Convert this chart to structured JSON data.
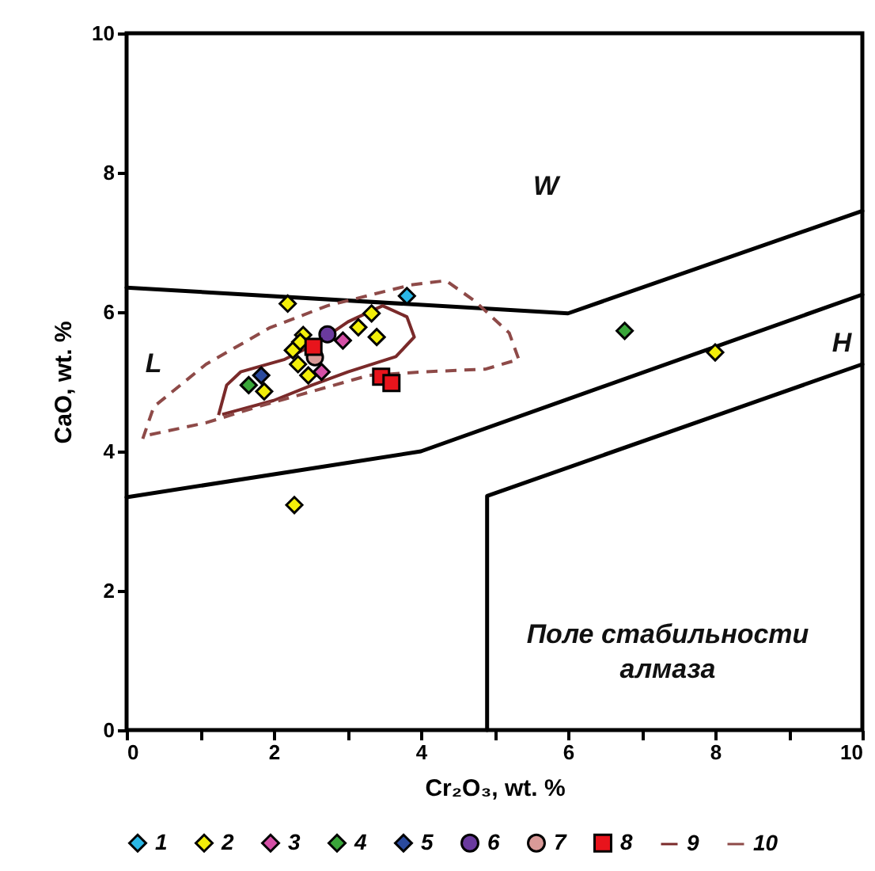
{
  "chart_data": {
    "type": "scatter",
    "xlabel": "Cr₂O₃, wt. %",
    "ylabel": "CaO, wt. %",
    "xlim": [
      0,
      10
    ],
    "ylim": [
      0,
      10
    ],
    "xticks": [
      0,
      {
        "value": 1,
        "label": null
      },
      2,
      {
        "value": 3,
        "label": null
      },
      4,
      {
        "value": 5,
        "label": null
      },
      6,
      {
        "value": 7,
        "label": null
      },
      8,
      {
        "value": 9,
        "label": null
      },
      10
    ],
    "yticks": [
      0,
      2,
      4,
      6,
      8,
      10
    ],
    "grid": false,
    "legend": "bottom",
    "annotations": [
      "W",
      "L",
      "H",
      "Поле стабильности\nалмаза"
    ],
    "series": [
      {
        "type": "line",
        "color": "#000000",
        "line_style": "solid",
        "x": [
          0,
          6,
          10
        ],
        "values": [
          6.35,
          5.98,
          7.45
        ]
      },
      {
        "type": "line",
        "color": "#000000",
        "line_style": "solid",
        "x": [
          0,
          4,
          10
        ],
        "values": [
          3.34,
          4.0,
          6.25
        ]
      },
      {
        "type": "line",
        "color": "#000000",
        "line_style": "solid",
        "x": [
          4.9,
          4.9,
          10
        ],
        "values": [
          0,
          3.36,
          5.25
        ]
      },
      {
        "name": "1",
        "color": "#2ab7e6",
        "marker": "diamond",
        "x": [
          3.81
        ],
        "values": [
          6.23
        ]
      },
      {
        "name": "2",
        "color": "#f2ee0a",
        "marker": "diamond",
        "x": [
          2.19,
          3.33,
          3.15,
          3.4,
          2.4,
          2.26,
          2.33,
          2.47,
          1.87,
          2.36,
          8.0,
          2.28
        ],
        "values": [
          6.12,
          5.98,
          5.78,
          5.64,
          5.67,
          5.45,
          5.25,
          5.09,
          4.86,
          5.57,
          5.42,
          3.23
        ]
      },
      {
        "name": "3",
        "color": "#d44fa6",
        "marker": "diamond",
        "x": [
          2.94,
          2.65
        ],
        "values": [
          5.59,
          5.14
        ]
      },
      {
        "name": "4",
        "color": "#3aa63a",
        "marker": "diamond",
        "x": [
          1.66,
          6.77
        ],
        "values": [
          4.95,
          5.73
        ]
      },
      {
        "name": "5",
        "color": "#2a4a9e",
        "marker": "diamond",
        "x": [
          1.83
        ],
        "values": [
          5.09
        ]
      },
      {
        "name": "6",
        "color": "#6a3a9e",
        "marker": "circle",
        "x": [
          2.73
        ],
        "values": [
          5.68
        ]
      },
      {
        "name": "7",
        "color": "#d99a98",
        "marker": "circle",
        "x": [
          2.56
        ],
        "values": [
          5.35
        ]
      },
      {
        "name": "8",
        "color": "#e8141c",
        "marker": "square",
        "x": [
          2.54,
          3.46,
          3.6
        ],
        "values": [
          5.5,
          5.07,
          4.98
        ]
      },
      {
        "name": "9",
        "type": "line",
        "color": "#7a2a2a",
        "line_style": "solid",
        "marker": "none",
        "x": [
          1.25,
          1.36,
          1.55,
          2.15,
          2.58,
          3.01,
          3.48,
          3.81,
          3.91,
          3.66,
          3.01,
          2.52,
          2.0,
          1.44,
          1.3
        ],
        "values": [
          4.52,
          4.95,
          5.14,
          5.32,
          5.55,
          5.86,
          6.09,
          5.93,
          5.64,
          5.36,
          5.14,
          4.95,
          4.73,
          4.57,
          4.53
        ]
      },
      {
        "name": "10",
        "type": "line",
        "color": "#8e4a48",
        "line_style": "dashed",
        "marker": "none",
        "x": [
          0.22,
          0.37,
          1.08,
          1.94,
          2.73,
          3.87,
          4.34,
          4.73,
          5.2,
          5.33,
          4.88,
          4.02,
          3.29,
          2.52,
          1.78,
          1.08,
          0.28
        ],
        "values": [
          4.18,
          4.64,
          5.25,
          5.77,
          6.09,
          6.39,
          6.45,
          6.16,
          5.7,
          5.32,
          5.18,
          5.14,
          5.09,
          4.86,
          4.64,
          4.41,
          4.23
        ]
      }
    ]
  }
}
